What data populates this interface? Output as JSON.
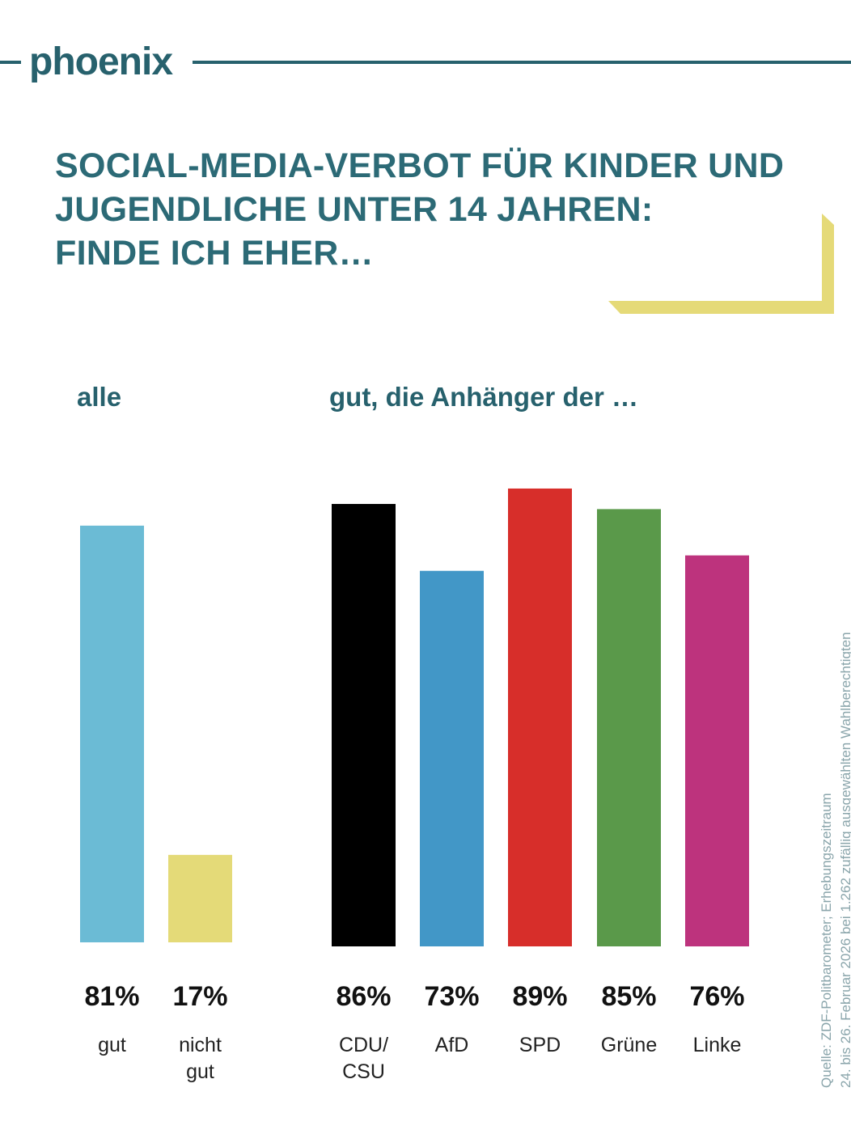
{
  "brand": {
    "logo_text": "phoenix",
    "color": "#27616d"
  },
  "title_lines": [
    "SOCIAL-MEDIA-VERBOT FÜR KINDER UND",
    "JUGENDLICHE UNTER 14 JAHREN:",
    "FINDE ICH EHER…"
  ],
  "colors": {
    "title": "#2c6a76",
    "accent": "#e5da78",
    "value_text": "#111111",
    "label_text": "#222222"
  },
  "subheads": {
    "all": "alle",
    "supporters": "gut, die Anhänger der …"
  },
  "source_lines": [
    "Quelle: ZDF-Politbarometer; Erhebungszeitraum",
    "24. bis 26. Februar 2026 bei 1.262 zufällig ausgewählten Wahlberechtigten"
  ],
  "chart_data": [
    {
      "type": "bar",
      "title": "alle",
      "categories": [
        "gut",
        "nicht gut"
      ],
      "category_labels": [
        [
          "gut"
        ],
        [
          "nicht",
          "gut"
        ]
      ],
      "value_labels": [
        "81%",
        "17%"
      ],
      "values": [
        81,
        17
      ],
      "colors": [
        "#6bbbd5",
        "#e4da78"
      ],
      "ylim": [
        0,
        100
      ]
    },
    {
      "type": "bar",
      "title": "gut, die Anhänger der …",
      "categories": [
        "CDU/CSU",
        "AfD",
        "SPD",
        "Grüne",
        "Linke"
      ],
      "category_labels": [
        [
          "CDU/",
          "CSU"
        ],
        [
          "AfD"
        ],
        [
          "SPD"
        ],
        [
          "Grüne"
        ],
        [
          "Linke"
        ]
      ],
      "value_labels": [
        "86%",
        "73%",
        "89%",
        "85%",
        "76%"
      ],
      "values": [
        86,
        73,
        89,
        85,
        76
      ],
      "colors": [
        "#000000",
        "#4297c7",
        "#d72e2a",
        "#5a994a",
        "#bd337d"
      ],
      "ylim": [
        0,
        100
      ]
    }
  ]
}
